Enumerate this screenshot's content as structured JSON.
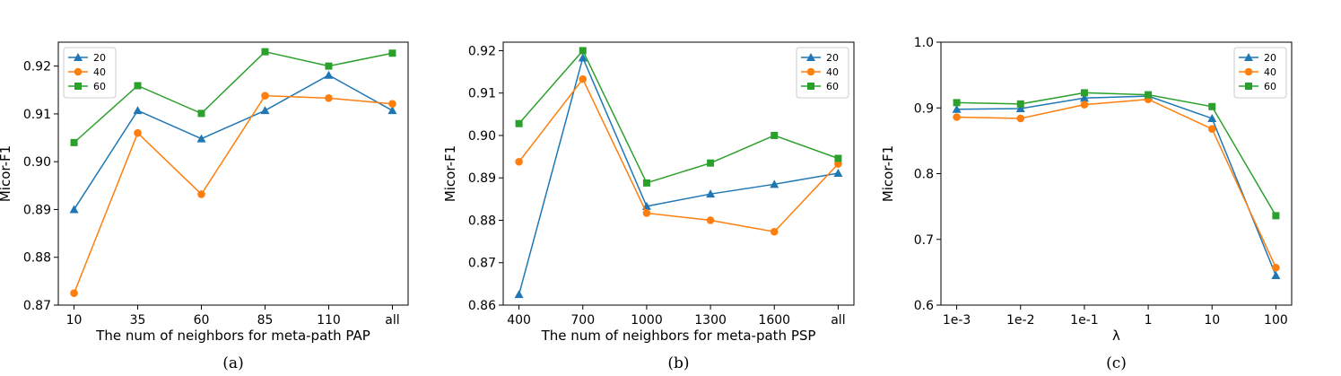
{
  "colors": {
    "s20": "#1f77b4",
    "s40": "#ff7f0e",
    "s60": "#2ca02c"
  },
  "chart_data": [
    {
      "type": "line",
      "caption": "(a)",
      "xlabel": "The num of neighbors for meta-path PAP",
      "ylabel": "Micor-F1",
      "categories": [
        "10",
        "35",
        "60",
        "85",
        "110",
        "all"
      ],
      "ylim": [
        0.87,
        0.925
      ],
      "yticks": [
        "0.87",
        "0.88",
        "0.89",
        "0.90",
        "0.91",
        "0.92"
      ],
      "legend_position": "upper-left",
      "series": [
        {
          "name": "20",
          "marker": "triangle",
          "values": [
            0.89,
            0.9107,
            0.9048,
            0.9107,
            0.9181,
            0.9107
          ]
        },
        {
          "name": "40",
          "marker": "circle",
          "values": [
            0.8725,
            0.906,
            0.8932,
            0.9138,
            0.9133,
            0.9121
          ]
        },
        {
          "name": "60",
          "marker": "square",
          "values": [
            0.904,
            0.9159,
            0.9101,
            0.923,
            0.92,
            0.9227
          ]
        }
      ]
    },
    {
      "type": "line",
      "caption": "(b)",
      "xlabel": "The num of neighbors for meta-path PSP",
      "ylabel": "Micor-F1",
      "categories": [
        "400",
        "700",
        "1000",
        "1300",
        "1600",
        "all"
      ],
      "ylim": [
        0.86,
        0.922
      ],
      "yticks": [
        "0.86",
        "0.87",
        "0.88",
        "0.89",
        "0.90",
        "0.91",
        "0.92"
      ],
      "legend_position": "upper-right",
      "series": [
        {
          "name": "20",
          "marker": "triangle",
          "values": [
            0.8625,
            0.9183,
            0.8833,
            0.8862,
            0.8885,
            0.8911
          ]
        },
        {
          "name": "40",
          "marker": "circle",
          "values": [
            0.8938,
            0.9133,
            0.8817,
            0.88,
            0.8773,
            0.8933
          ]
        },
        {
          "name": "60",
          "marker": "square",
          "values": [
            0.9028,
            0.92,
            0.8888,
            0.8935,
            0.9,
            0.8946
          ]
        }
      ]
    },
    {
      "type": "line",
      "caption": "(c)",
      "xlabel": "λ",
      "ylabel": "Micor-F1",
      "categories": [
        "1e-3",
        "1e-2",
        "1e-1",
        "1",
        "10",
        "100"
      ],
      "ylim": [
        0.6,
        1.0
      ],
      "yticks": [
        "0.6",
        "0.7",
        "0.8",
        "0.9",
        "1.0"
      ],
      "legend_position": "upper-right",
      "series": [
        {
          "name": "20",
          "marker": "triangle",
          "values": [
            0.898,
            0.899,
            0.915,
            0.918,
            0.884,
            0.645
          ]
        },
        {
          "name": "40",
          "marker": "circle",
          "values": [
            0.886,
            0.884,
            0.905,
            0.913,
            0.868,
            0.657
          ]
        },
        {
          "name": "60",
          "marker": "square",
          "values": [
            0.908,
            0.906,
            0.923,
            0.92,
            0.902,
            0.736
          ]
        }
      ]
    }
  ]
}
